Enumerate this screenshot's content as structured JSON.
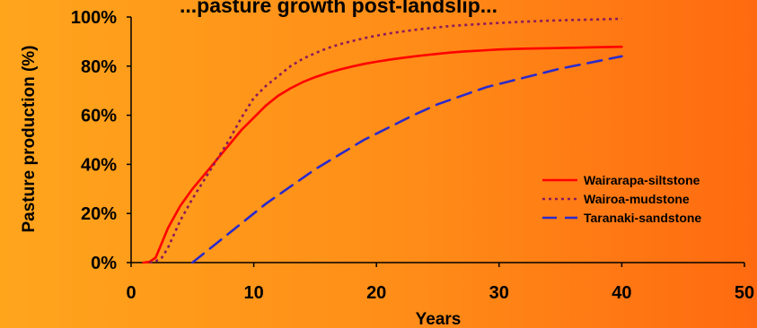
{
  "chart_data": {
    "type": "line",
    "title": "...pasture growth post-landslip...",
    "xlabel": "Years",
    "ylabel": "Pasture production (%)",
    "xlim": [
      0,
      50
    ],
    "ylim": [
      0,
      100
    ],
    "x_ticks": [
      "0",
      "10",
      "20",
      "30",
      "40",
      "50"
    ],
    "y_ticks": [
      "0%",
      "20%",
      "40%",
      "60%",
      "80%",
      "100%"
    ],
    "grid": false,
    "legend_position": "right",
    "series": [
      {
        "name": "Wairarapa-siltstone",
        "color": "#ff0000",
        "style": "solid",
        "x": [
          1,
          1.5,
          2,
          2.5,
          3,
          4,
          5,
          6,
          7,
          8,
          9,
          10,
          11,
          12,
          13,
          14,
          15,
          16,
          17,
          18,
          19,
          20,
          21,
          22,
          23,
          24,
          25,
          26,
          27,
          28,
          29,
          30,
          32,
          34,
          36,
          38,
          40
        ],
        "y": [
          0,
          0.3,
          2,
          8,
          14,
          23,
          30,
          36,
          42,
          48,
          54,
          59,
          64,
          68,
          71,
          73.5,
          75.5,
          77.2,
          78.6,
          79.8,
          80.9,
          81.8,
          82.6,
          83.3,
          83.9,
          84.5,
          85,
          85.5,
          85.9,
          86.2,
          86.5,
          86.8,
          87.1,
          87.3,
          87.5,
          87.7,
          87.9
        ]
      },
      {
        "name": "Wairoa-mudstone",
        "color": "#8a1a5a",
        "style": "dotted",
        "x": [
          1.5,
          2,
          2.5,
          3,
          4,
          5,
          6,
          7,
          8,
          9,
          10,
          11,
          12,
          13,
          14,
          15,
          16,
          17,
          18,
          19,
          20,
          21,
          22,
          23,
          24,
          25,
          26,
          28,
          30,
          32,
          34,
          36,
          38,
          40
        ],
        "y": [
          0,
          0.5,
          2,
          6,
          17,
          26,
          34,
          42,
          50,
          59,
          67,
          72,
          76,
          80,
          83,
          85.3,
          87.3,
          88.9,
          90.2,
          91.4,
          92.4,
          93.3,
          94,
          94.7,
          95.3,
          95.8,
          96.3,
          97,
          97.6,
          98.1,
          98.5,
          98.8,
          99,
          99.3
        ]
      },
      {
        "name": "Taranaki-sandstone",
        "color": "#2a2acc",
        "style": "dashed",
        "x": [
          5,
          7,
          9,
          11,
          13,
          15,
          17,
          19,
          21,
          23,
          25,
          27,
          29,
          31,
          33,
          35,
          37,
          40
        ],
        "y": [
          0,
          8,
          16,
          24,
          31,
          38,
          44,
          50,
          55,
          60,
          64.5,
          68,
          71.5,
          74,
          76.5,
          79,
          81,
          84
        ]
      }
    ]
  }
}
